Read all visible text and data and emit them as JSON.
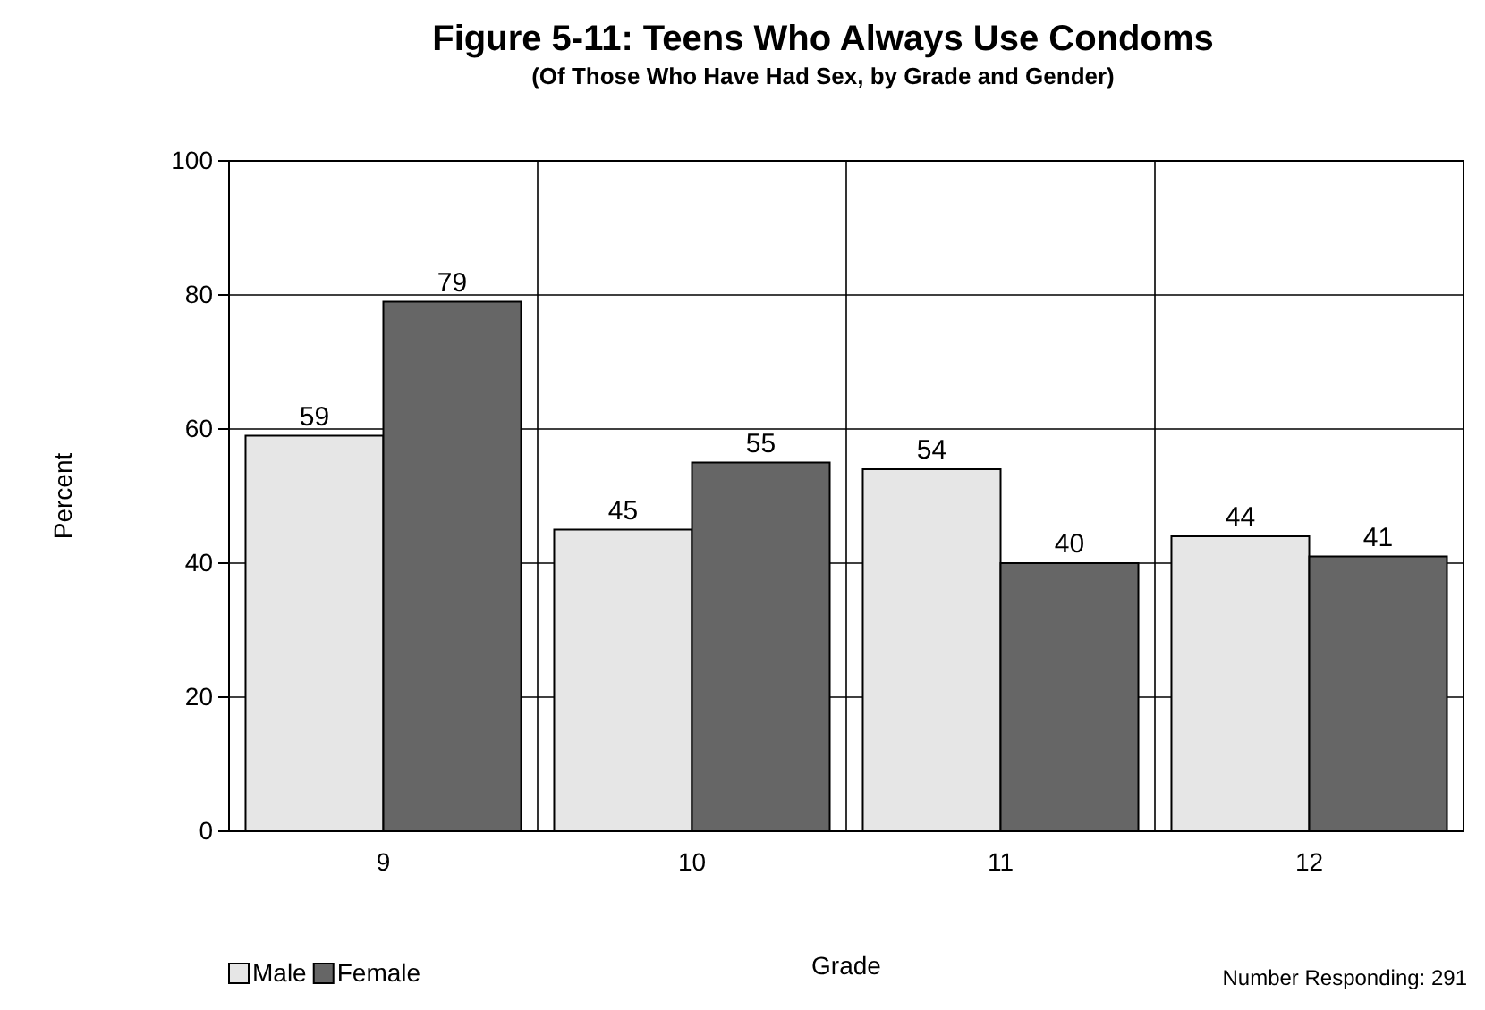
{
  "chart_data": {
    "type": "bar",
    "title": "Figure 5-11: Teens Who Always Use Condoms",
    "subtitle": "(Of Those Who Have Had Sex, by Grade and Gender)",
    "xlabel": "Grade",
    "ylabel": "Percent",
    "categories": [
      "9",
      "10",
      "11",
      "12"
    ],
    "series": [
      {
        "name": "Male",
        "color": "#e6e6e6",
        "values": [
          59,
          45,
          54,
          44
        ]
      },
      {
        "name": "Female",
        "color": "#666666",
        "values": [
          79,
          55,
          40,
          41
        ]
      }
    ],
    "ylim": [
      0,
      100
    ],
    "yticks": [
      0,
      20,
      40,
      60,
      80,
      100
    ],
    "grid": true,
    "legend": "bottom left",
    "data_labels": true,
    "annotations": [
      "Number Responding: 291"
    ]
  }
}
